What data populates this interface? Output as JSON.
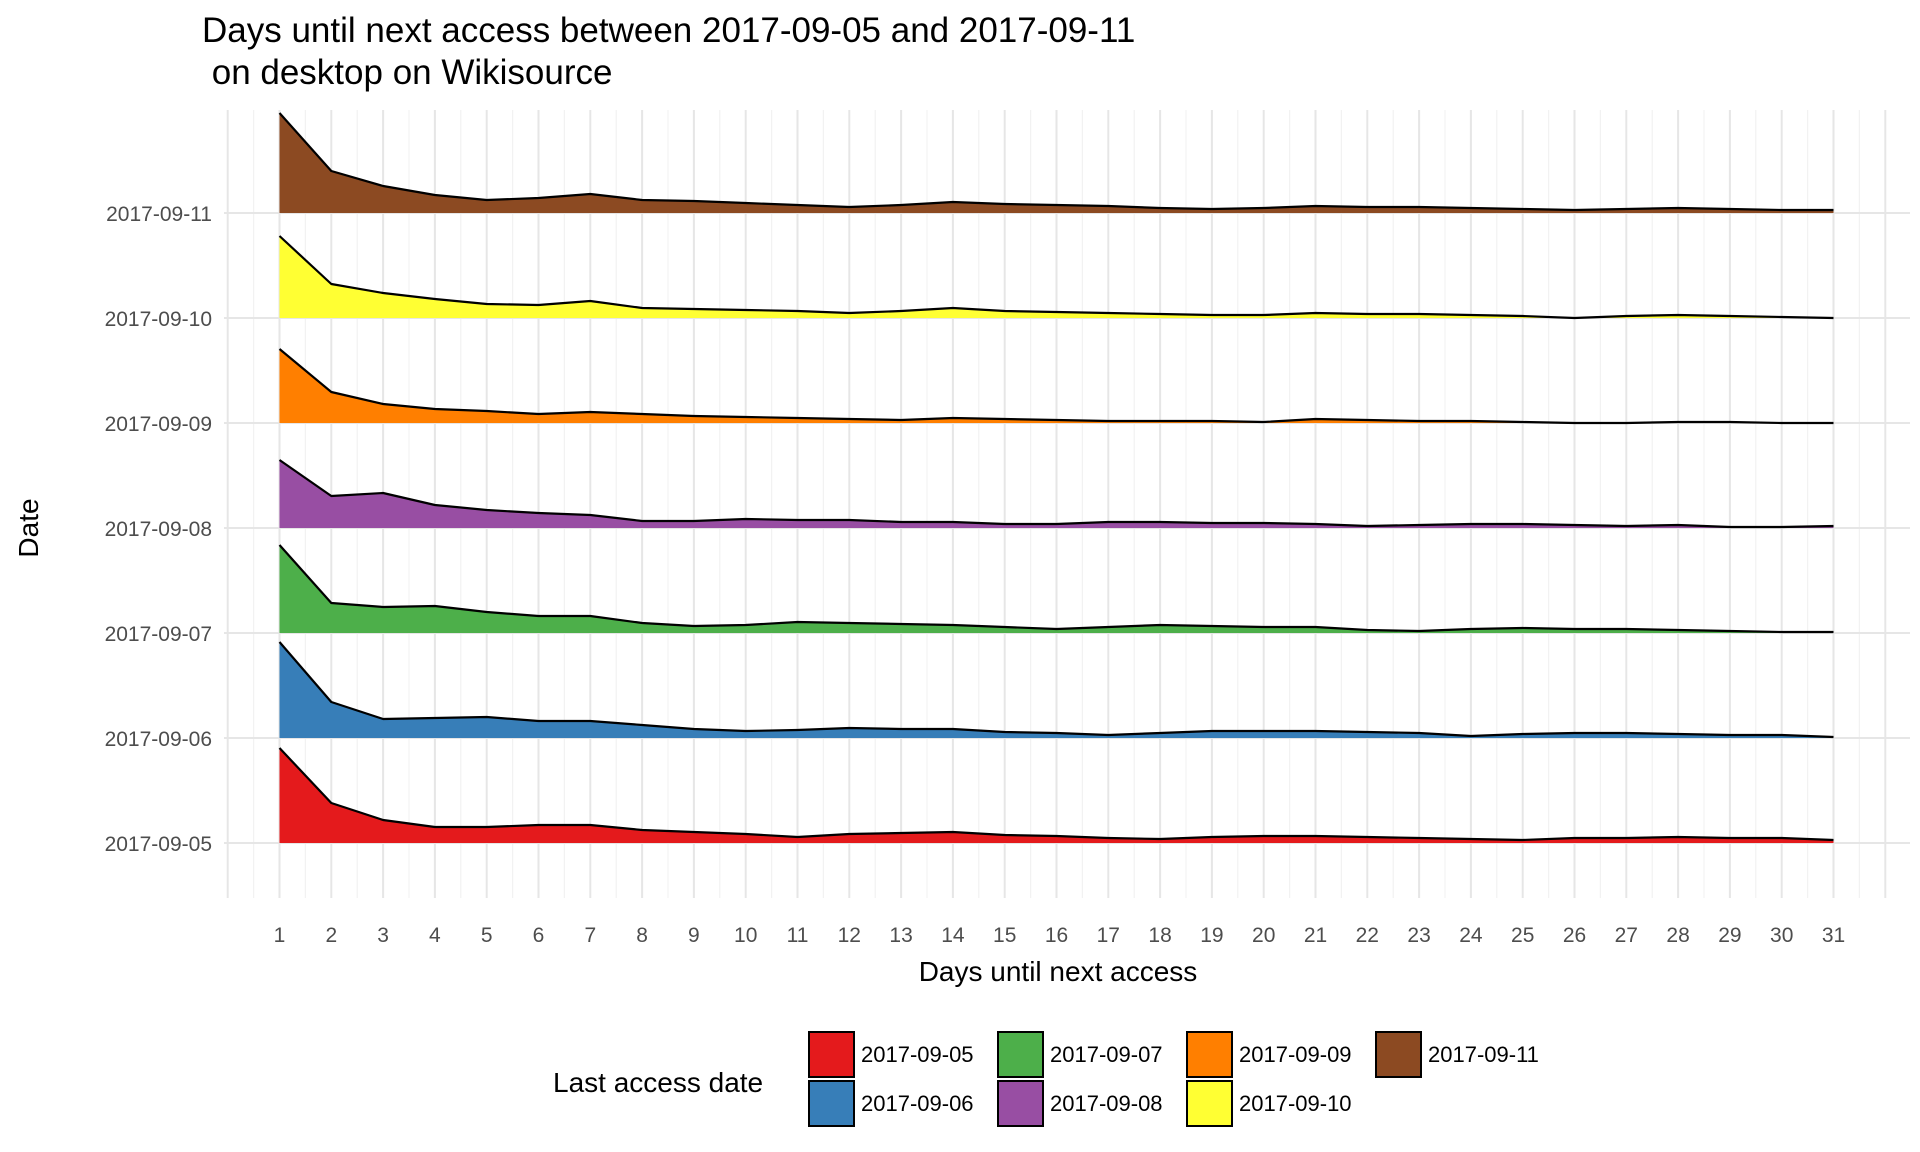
{
  "chart_data": {
    "type": "area",
    "title_line1": "Days until next access between 2017-09-05 and 2017-09-11",
    "title_line2": " on desktop on Wikisource",
    "xlabel": "Days until next access",
    "ylabel": "Date",
    "x": [
      1,
      2,
      3,
      4,
      5,
      6,
      7,
      8,
      9,
      10,
      11,
      12,
      13,
      14,
      15,
      16,
      17,
      18,
      19,
      20,
      21,
      22,
      23,
      24,
      25,
      26,
      27,
      28,
      29,
      30,
      31
    ],
    "x_range": [
      0,
      32
    ],
    "y_categories": [
      "2017-09-05",
      "2017-09-06",
      "2017-09-07",
      "2017-09-08",
      "2017-09-09",
      "2017-09-10",
      "2017-09-11"
    ],
    "grid": true,
    "legend": {
      "title": "Last access date",
      "position": "bottom",
      "entries": [
        "2017-09-05",
        "2017-09-06",
        "2017-09-07",
        "2017-09-08",
        "2017-09-09",
        "2017-09-10",
        "2017-09-11"
      ]
    },
    "series": [
      {
        "name": "2017-09-05",
        "color": "#E41A1C",
        "values": [
          0.95,
          0.4,
          0.23,
          0.16,
          0.16,
          0.18,
          0.18,
          0.13,
          0.11,
          0.09,
          0.06,
          0.09,
          0.1,
          0.11,
          0.08,
          0.07,
          0.05,
          0.04,
          0.06,
          0.07,
          0.07,
          0.06,
          0.05,
          0.04,
          0.03,
          0.05,
          0.05,
          0.06,
          0.05,
          0.05,
          0.03
        ]
      },
      {
        "name": "2017-09-06",
        "color": "#377EB8",
        "values": [
          0.96,
          0.36,
          0.19,
          0.2,
          0.21,
          0.17,
          0.17,
          0.13,
          0.09,
          0.07,
          0.08,
          0.1,
          0.09,
          0.09,
          0.06,
          0.05,
          0.03,
          0.05,
          0.07,
          0.07,
          0.07,
          0.06,
          0.05,
          0.02,
          0.04,
          0.05,
          0.05,
          0.04,
          0.03,
          0.03,
          0.01
        ]
      },
      {
        "name": "2017-09-07",
        "color": "#4DAF4A",
        "values": [
          0.88,
          0.3,
          0.26,
          0.27,
          0.21,
          0.17,
          0.17,
          0.1,
          0.07,
          0.08,
          0.11,
          0.1,
          0.09,
          0.08,
          0.06,
          0.04,
          0.06,
          0.08,
          0.07,
          0.06,
          0.06,
          0.03,
          0.02,
          0.04,
          0.05,
          0.04,
          0.04,
          0.03,
          0.02,
          0.01,
          0.01
        ]
      },
      {
        "name": "2017-09-08",
        "color": "#984EA3",
        "values": [
          0.68,
          0.32,
          0.35,
          0.23,
          0.18,
          0.15,
          0.13,
          0.07,
          0.07,
          0.09,
          0.08,
          0.08,
          0.06,
          0.06,
          0.04,
          0.04,
          0.06,
          0.06,
          0.05,
          0.05,
          0.04,
          0.02,
          0.03,
          0.04,
          0.04,
          0.03,
          0.02,
          0.03,
          0.01,
          0.01,
          0.02
        ]
      },
      {
        "name": "2017-09-09",
        "color": "#FF7F00",
        "values": [
          0.74,
          0.31,
          0.19,
          0.14,
          0.12,
          0.09,
          0.11,
          0.09,
          0.07,
          0.06,
          0.05,
          0.04,
          0.03,
          0.05,
          0.04,
          0.03,
          0.02,
          0.02,
          0.02,
          0.01,
          0.04,
          0.03,
          0.02,
          0.02,
          0.01,
          0.0,
          0.0,
          0.01,
          0.01,
          0.0,
          0.0
        ]
      },
      {
        "name": "2017-09-10",
        "color": "#FFFF33",
        "values": [
          0.82,
          0.34,
          0.25,
          0.19,
          0.14,
          0.13,
          0.17,
          0.1,
          0.09,
          0.08,
          0.07,
          0.05,
          0.07,
          0.1,
          0.07,
          0.06,
          0.05,
          0.04,
          0.03,
          0.03,
          0.05,
          0.04,
          0.04,
          0.03,
          0.02,
          0.0,
          0.02,
          0.03,
          0.02,
          0.01,
          0.0
        ]
      },
      {
        "name": "2017-09-11",
        "color": "#8C4A22",
        "values": [
          1.0,
          0.42,
          0.27,
          0.18,
          0.13,
          0.15,
          0.19,
          0.13,
          0.12,
          0.1,
          0.08,
          0.06,
          0.08,
          0.11,
          0.09,
          0.08,
          0.07,
          0.05,
          0.04,
          0.05,
          0.07,
          0.06,
          0.06,
          0.05,
          0.04,
          0.03,
          0.04,
          0.05,
          0.04,
          0.03,
          0.03
        ]
      }
    ]
  }
}
